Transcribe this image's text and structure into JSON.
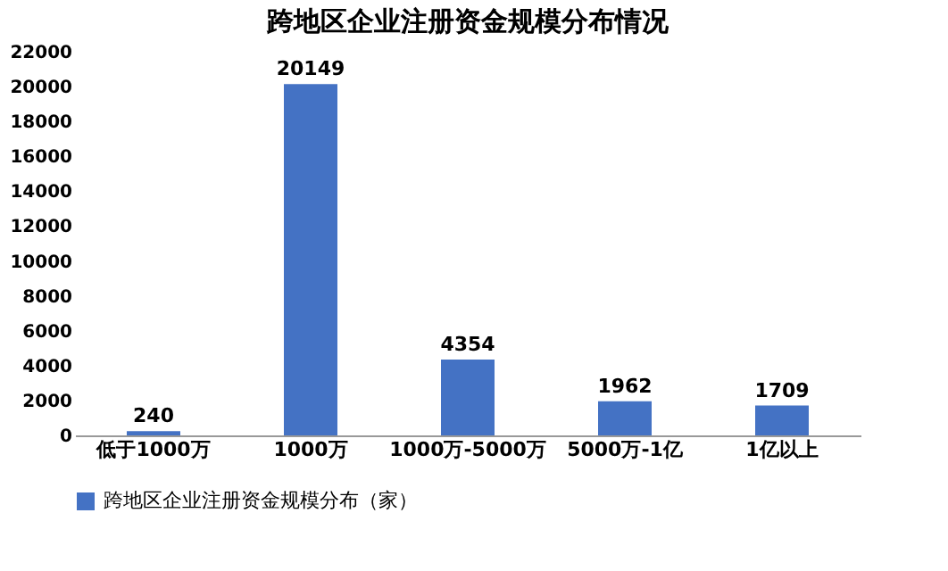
{
  "chart_data": {
    "type": "bar",
    "title": "跨地区企业注册资金规模分布情况",
    "categories": [
      "低于1000万",
      "1000万",
      "1000万-5000万",
      "5000万-1亿",
      "1亿以上"
    ],
    "series": [
      {
        "name": "跨地区企业注册资金规模分布（家）",
        "color": "#4472c4",
        "values": [
          240,
          20149,
          4354,
          1962,
          1709
        ]
      }
    ],
    "ylim": [
      0,
      22000
    ],
    "yticks": [
      0,
      2000,
      4000,
      6000,
      8000,
      10000,
      12000,
      14000,
      16000,
      18000,
      20000,
      22000
    ],
    "data_labels": true,
    "legend": "bottom",
    "grid": false
  }
}
